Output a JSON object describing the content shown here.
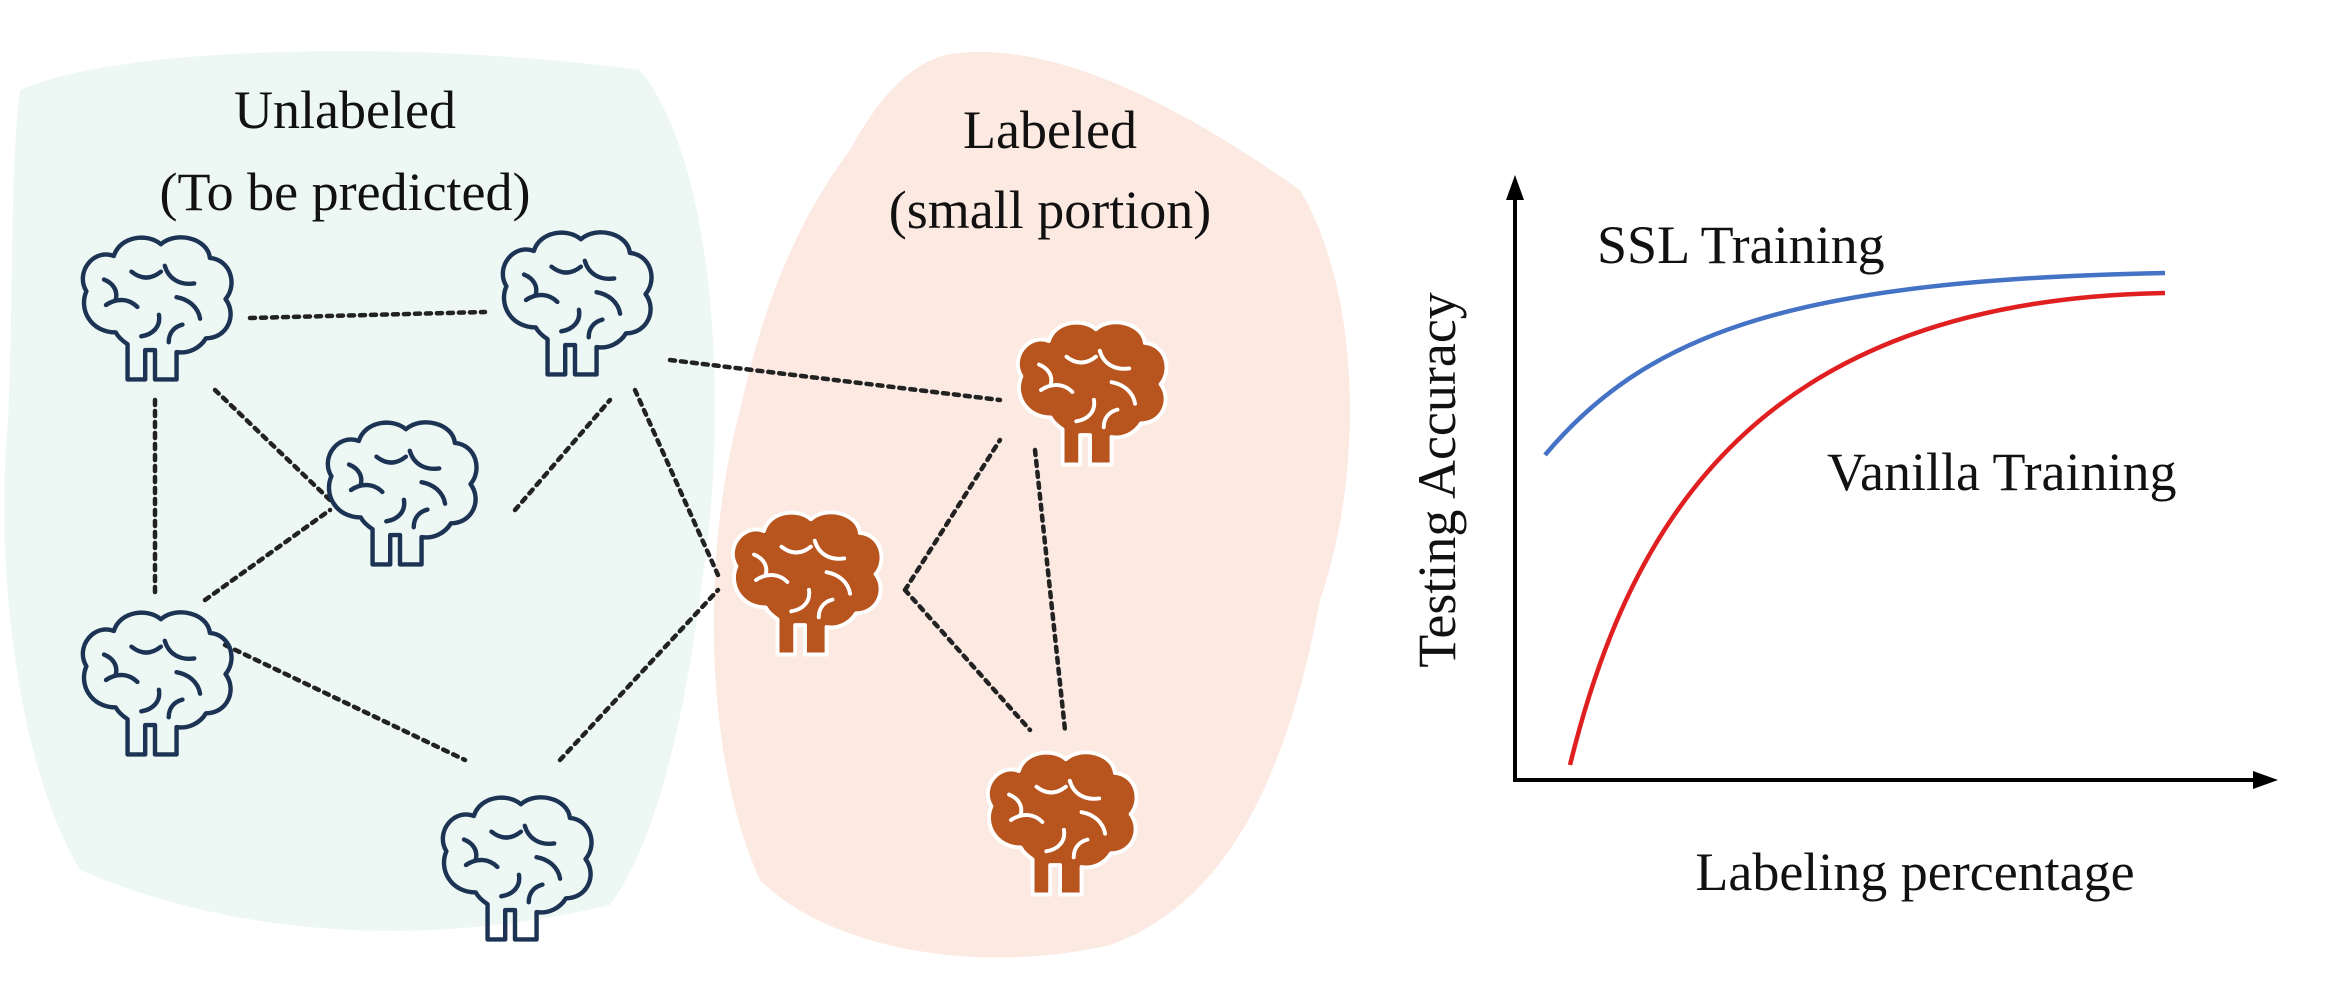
{
  "groups": {
    "unlabeled": {
      "title_line1": "Unlabeled",
      "title_line2": "(To be predicted)",
      "blob_color": "#edf8f5",
      "icon_color": "#1c3354"
    },
    "labeled": {
      "title_line1": "Labeled",
      "title_line2": "(small portion)",
      "blob_color": "#fce9e1",
      "icon_color": "#b8541d"
    }
  },
  "graph": {
    "nodes": [
      {
        "id": "u1",
        "group": "unlabeled"
      },
      {
        "id": "u2",
        "group": "unlabeled"
      },
      {
        "id": "u3",
        "group": "unlabeled"
      },
      {
        "id": "u4",
        "group": "unlabeled"
      },
      {
        "id": "u5",
        "group": "unlabeled"
      },
      {
        "id": "l1",
        "group": "labeled"
      },
      {
        "id": "l2",
        "group": "labeled"
      },
      {
        "id": "l3",
        "group": "labeled"
      }
    ],
    "edges": [
      [
        "u1",
        "u2"
      ],
      [
        "u1",
        "u3"
      ],
      [
        "u1",
        "u4"
      ],
      [
        "u3",
        "u4"
      ],
      [
        "u4",
        "u5"
      ],
      [
        "u2",
        "u5"
      ],
      [
        "u2",
        "l2"
      ],
      [
        "u2",
        "l1"
      ],
      [
        "u5",
        "l2"
      ],
      [
        "l2",
        "l1"
      ],
      [
        "l2",
        "l3"
      ],
      [
        "l1",
        "l3"
      ]
    ]
  },
  "chart_data": {
    "type": "line",
    "xlabel": "Labeling percentage",
    "ylabel": "Testing Accuracy",
    "series": [
      {
        "name": "SSL Training",
        "color": "#4472c4"
      },
      {
        "name": "Vanilla Training",
        "color": "#e02020"
      }
    ]
  }
}
